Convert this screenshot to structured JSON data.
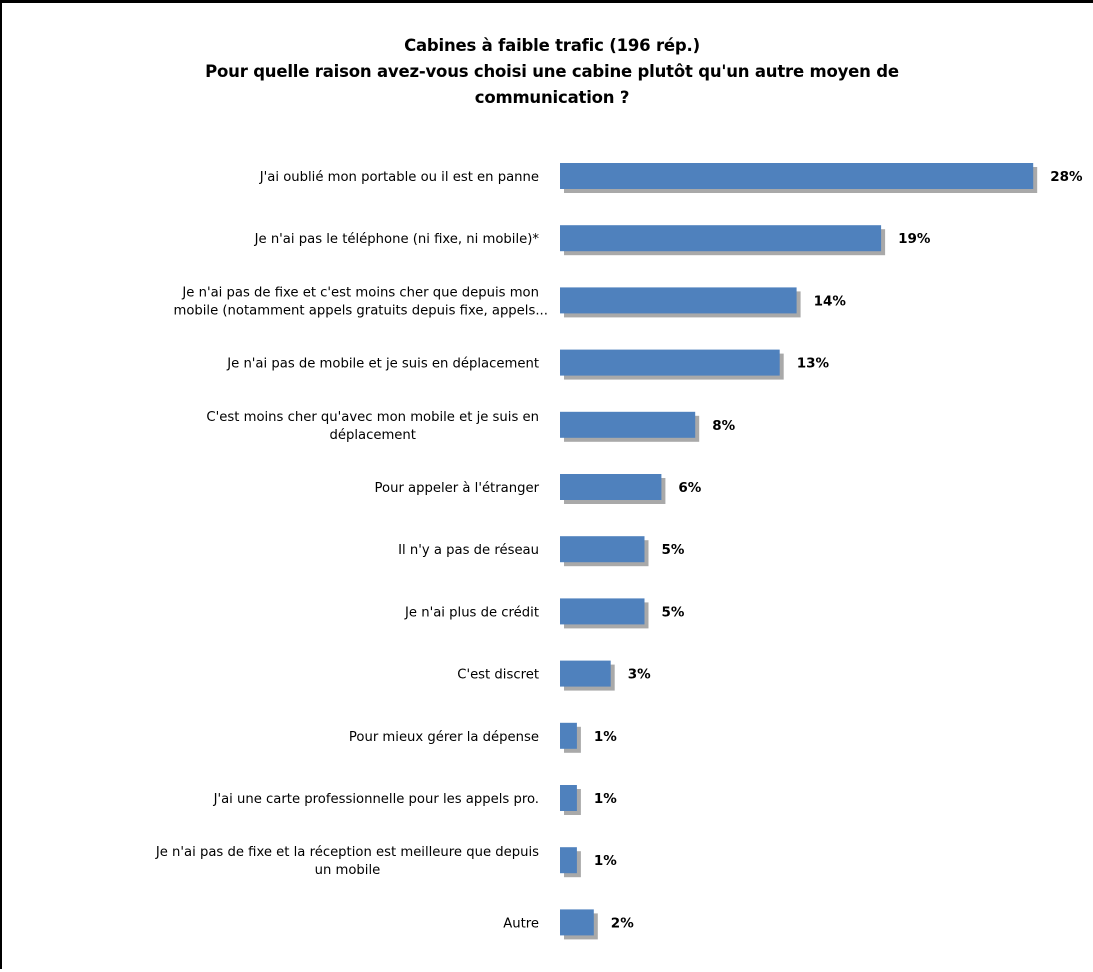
{
  "chart_data": {
    "type": "bar",
    "orientation": "horizontal",
    "title_lines": [
      "Cabines à faible trafic (196 rép.)",
      "Pour quelle raison avez-vous choisi une cabine plutôt qu'un autre  moyen de",
      "communication ?"
    ],
    "categories": [
      [
        "J'ai oublié mon portable ou il est en panne"
      ],
      [
        "Je n'ai pas le téléphone (ni fixe, ni mobile)*"
      ],
      [
        "Je n'ai pas de fixe et c'est moins cher que depuis mon",
        "mobile (notamment  appels gratuits  depuis fixe, appels..."
      ],
      [
        "Je n'ai pas de mobile et je suis en déplacement"
      ],
      [
        "C'est moins cher qu'avec mon mobile et je suis en",
        "déplacement"
      ],
      [
        "Pour appeler à l'étranger"
      ],
      [
        "Il n'y a pas de réseau"
      ],
      [
        "Je n'ai plus de crédit"
      ],
      [
        "C'est discret"
      ],
      [
        "Pour mieux gérer la dépense"
      ],
      [
        "J'ai une carte professionnelle pour les appels pro."
      ],
      [
        "Je n'ai pas de fixe et la réception est meilleure que depuis",
        "un mobile"
      ],
      [
        "Autre"
      ]
    ],
    "values": [
      28,
      19,
      14,
      13,
      8,
      6,
      5,
      5,
      3,
      1,
      1,
      1,
      2
    ],
    "value_labels": [
      "28%",
      "19%",
      "14%",
      "13%",
      "8%",
      "6%",
      "5%",
      "5%",
      "3%",
      "1%",
      "1%",
      "1%",
      "2%"
    ],
    "unit": "%",
    "bar_color": "#4F81BD",
    "shadow_color": "#8C8C8C",
    "grid": false,
    "legend": "none"
  }
}
